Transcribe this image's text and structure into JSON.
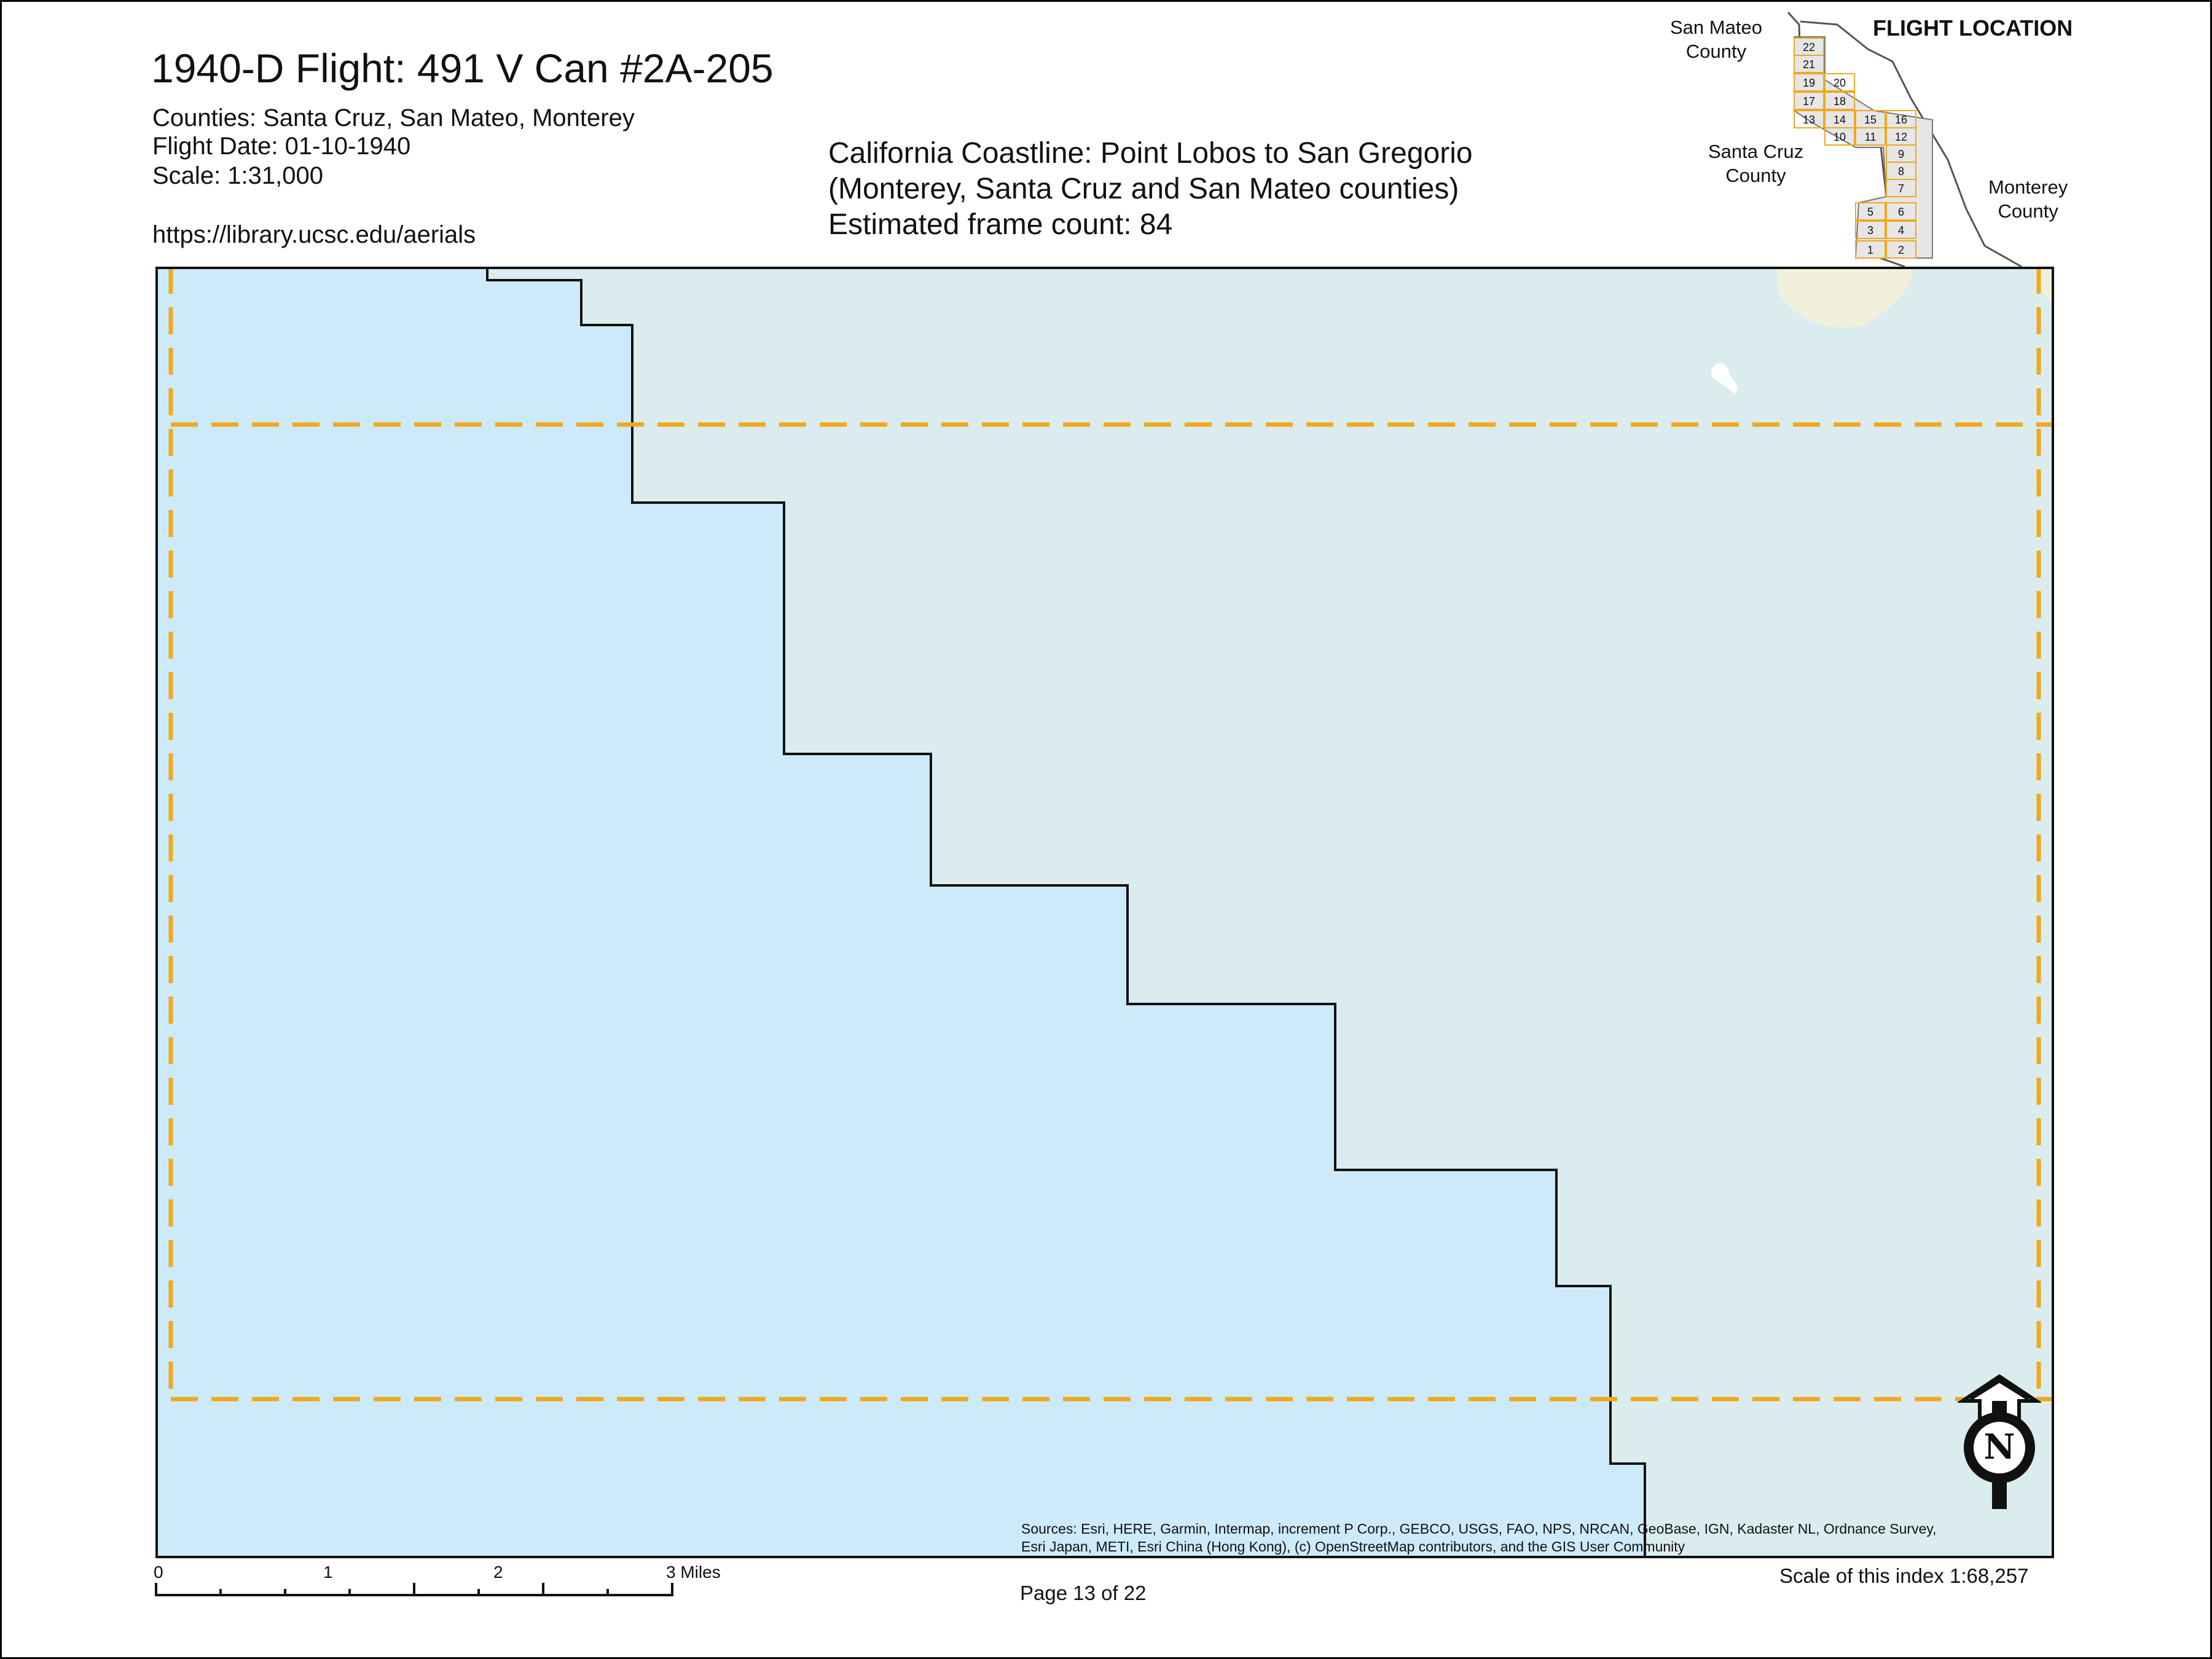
{
  "title": "1940-D Flight: 491 V Can #2A-205",
  "meta": {
    "counties": "Counties: Santa Cruz, San Mateo, Monterey",
    "flight_date": "Flight Date: 01-10-1940",
    "scale": "Scale: 1:31,000",
    "url": "https://library.ucsc.edu/aerials"
  },
  "subtitle": {
    "line1": "California Coastline: Point Lobos to San Gregorio",
    "line2": "(Monterey, Santa Cruz and San Mateo counties)",
    "line3": "Estimated frame count: 84"
  },
  "inset": {
    "title": "FLIGHT LOCATION",
    "san_mateo_1": "San Mateo",
    "san_mateo_2": "County",
    "santa_cruz_1": "Santa Cruz",
    "santa_cruz_2": "County",
    "monterey_1": "Monterey",
    "monterey_2": "County",
    "page_numbers": [
      "22",
      "21",
      "19",
      "20",
      "17",
      "18",
      "13",
      "14",
      "15",
      "16",
      "10",
      "11",
      "12",
      "9",
      "8",
      "7",
      "5",
      "6",
      "3",
      "4",
      "1",
      "2"
    ]
  },
  "scalebar": {
    "labels": [
      "0",
      "1",
      "2",
      "3 Miles"
    ]
  },
  "page": "Page 13 of 22",
  "index_scale": "Scale of this index 1:68,257",
  "sources": {
    "line1": "Sources: Esri, HERE, Garmin, Intermap, increment P Corp., GEBCO, USGS, FAO, NPS, NRCAN, GeoBase, IGN, Kadaster NL, Ordnance Survey,",
    "line2": "Esri Japan, METI, Esri China (Hong Kong), (c) OpenStreetMap contributors, and the GIS User Community"
  },
  "north_arrow": "N",
  "colors": {
    "water": "#cdeafb",
    "land": "#dbecef",
    "coast_land": "#f1f0dc",
    "frame_outline": "#f0a81e",
    "county_fill": "#e6e6e6"
  }
}
